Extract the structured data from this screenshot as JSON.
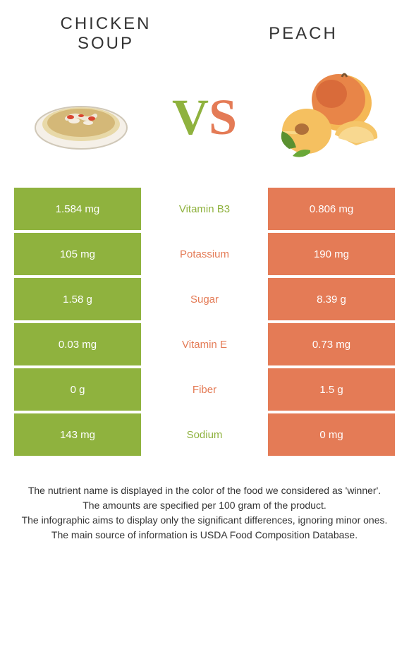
{
  "foods": {
    "left": {
      "title_line1": "CHICKEN",
      "title_line2": "SOUP",
      "color": "#8fb23e"
    },
    "right": {
      "title": "PEACH",
      "color": "#e47b56"
    }
  },
  "vs": {
    "v": "V",
    "s": "S"
  },
  "rows": [
    {
      "left": "1.584 mg",
      "nutrient": "Vitamin B3",
      "right": "0.806 mg",
      "winner": "left"
    },
    {
      "left": "105 mg",
      "nutrient": "Potassium",
      "right": "190 mg",
      "winner": "right"
    },
    {
      "left": "1.58 g",
      "nutrient": "Sugar",
      "right": "8.39 g",
      "winner": "right"
    },
    {
      "left": "0.03 mg",
      "nutrient": "Vitamin E",
      "right": "0.73 mg",
      "winner": "right"
    },
    {
      "left": "0 g",
      "nutrient": "Fiber",
      "right": "1.5 g",
      "winner": "right"
    },
    {
      "left": "143 mg",
      "nutrient": "Sodium",
      "right": "0 mg",
      "winner": "left"
    }
  ],
  "footer": {
    "line1": "The nutrient name is displayed in the color of the food we considered as 'winner'.",
    "line2": "The amounts are specified per 100 gram of the product.",
    "line3": "The infographic aims to display only the significant differences, ignoring minor ones.",
    "line4": "The main source of information is USDA Food Composition Database."
  },
  "colors": {
    "left_bg": "#8fb23e",
    "right_bg": "#e47b56",
    "mid_bg": "#ffffff",
    "text": "#333333"
  }
}
